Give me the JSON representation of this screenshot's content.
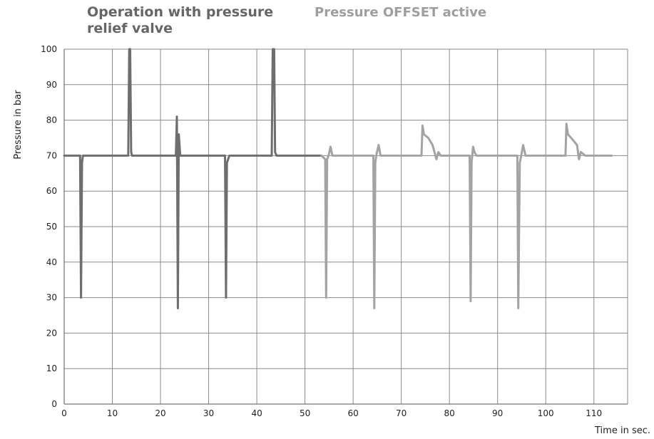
{
  "chart_data": {
    "type": "line",
    "annotations": [
      {
        "text": "Operation with pressure relief valve",
        "color": "#666666"
      },
      {
        "text": "Pressure OFFSET active",
        "color": "#9e9e9e"
      }
    ],
    "xlabel": "Time in sec.",
    "ylabel": "Pressure in bar",
    "xlim": [
      0,
      117
    ],
    "ylim": [
      0,
      100
    ],
    "xticks": [
      0,
      10,
      20,
      30,
      40,
      50,
      60,
      70,
      80,
      90,
      100,
      110
    ],
    "yticks": [
      0,
      10,
      20,
      30,
      40,
      50,
      60,
      70,
      80,
      90,
      100
    ],
    "grid": true,
    "series": [
      {
        "color": "#6e6e6e",
        "x": [
          0,
          3.3,
          3.5,
          3.7,
          3.9,
          4.3,
          13.3,
          13.5,
          13.7,
          13.9,
          14.1,
          14.8,
          23.2,
          23.4,
          23.6,
          23.8,
          24.1,
          33.2,
          33.4,
          33.6,
          33.8,
          34.3,
          43.1,
          43.3,
          43.6,
          43.8,
          44.1,
          44.8,
          53.4
        ],
        "y": [
          70,
          70,
          30,
          68,
          70,
          70,
          70,
          100,
          100,
          71,
          70,
          70,
          70,
          81,
          27,
          76,
          70,
          70,
          70,
          30,
          68,
          70,
          70,
          100,
          100,
          71,
          70,
          70,
          70
        ]
      },
      {
        "color": "#a3a3a3",
        "x": [
          53.4,
          54.2,
          54.4,
          54.6,
          54.9,
          55.3,
          55.7,
          56.3,
          64.2,
          64.4,
          64.6,
          64.8,
          65.3,
          65.7,
          66.2,
          74.2,
          74.4,
          74.7,
          75.6,
          76.5,
          77.3,
          77.7,
          78.2,
          84.2,
          84.4,
          84.6,
          84.9,
          85.2,
          85.6,
          86.1,
          94.1,
          94.3,
          94.6,
          94.9,
          95.3,
          95.8,
          96.3,
          104.1,
          104.3,
          104.6,
          105.6,
          106.5,
          106.9,
          107.3,
          108.2,
          113.7
        ],
        "y": [
          70,
          69,
          30,
          69,
          70,
          72.5,
          70,
          70,
          70,
          27,
          68,
          70,
          73,
          70,
          70,
          70,
          78.5,
          76,
          75,
          73,
          69,
          71,
          70,
          70,
          29,
          68,
          72.5,
          71,
          70,
          70,
          70,
          27,
          68,
          70,
          73,
          70,
          70,
          70,
          79,
          76,
          74.5,
          73,
          69,
          71,
          70,
          70
        ]
      }
    ]
  }
}
